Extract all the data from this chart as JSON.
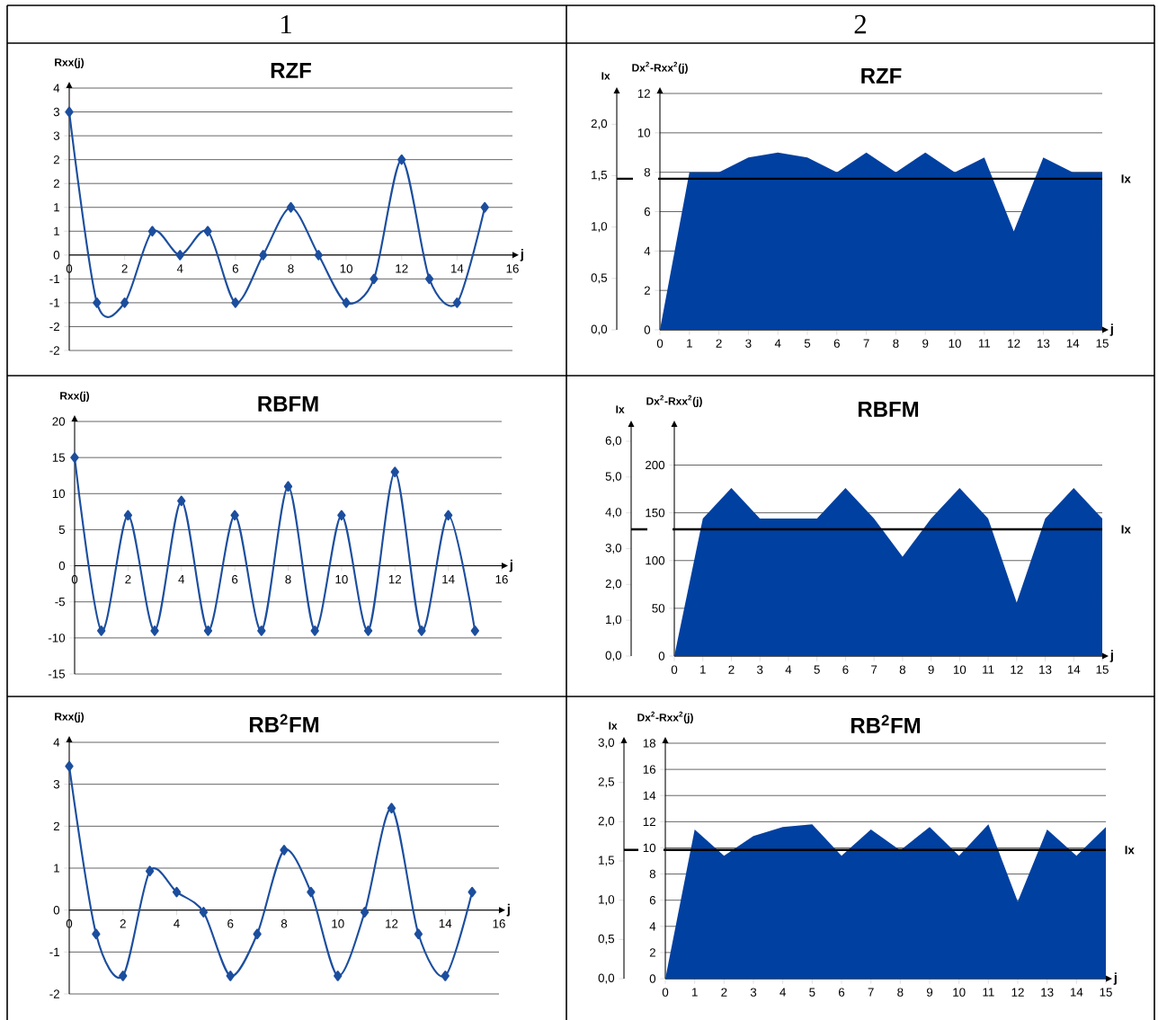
{
  "chart_data": [
    {
      "type": "line",
      "title": "RZF",
      "xlabel": "j",
      "ylabel": "Rxx(j)",
      "annotations": [
        "1"
      ],
      "color": "#1C4E9E",
      "marker": "diamond",
      "grid": "y",
      "x": [
        0,
        1,
        2,
        3,
        4,
        5,
        6,
        7,
        8,
        9,
        10,
        11,
        12,
        13,
        14,
        15
      ],
      "values": [
        3,
        -1,
        -1,
        0.5,
        0,
        0.5,
        -1,
        0,
        1,
        0,
        -1,
        -0.5,
        2,
        -0.5,
        -1,
        1
      ],
      "xlim": [
        0,
        16
      ],
      "xticks": [
        0,
        2,
        4,
        6,
        8,
        10,
        12,
        14,
        16
      ],
      "ylim": [
        -2,
        3.5
      ],
      "yticks": [
        {
          "value": 3.5,
          "label": "4"
        },
        3,
        {
          "value": 2.5,
          "label": "3"
        },
        2,
        {
          "value": 1.5,
          "label": "2"
        },
        1,
        {
          "value": 0.5,
          "label": "1"
        },
        0,
        {
          "value": -0.5,
          "label": "-1"
        },
        -1,
        {
          "value": -1.5,
          "label": "-2"
        },
        -2
      ]
    },
    {
      "type": "area",
      "title": "RZF",
      "xlabel": "j",
      "ylabel": "Dx$^{2}$-Rxx$^{2}$(j)",
      "y2label": "Ix",
      "annotations": [
        "2"
      ],
      "color": "#0040A0",
      "grid": "y",
      "x": [
        0,
        1,
        2,
        3,
        4,
        5,
        6,
        7,
        8,
        9,
        10,
        11,
        12,
        13,
        14,
        15
      ],
      "values": [
        0,
        8,
        8,
        8.75,
        9,
        8.75,
        8,
        9,
        8,
        9,
        8,
        8.75,
        5,
        8.75,
        8,
        8
      ],
      "xlim": [
        0,
        15
      ],
      "xticks": [
        0,
        1,
        2,
        3,
        4,
        5,
        6,
        7,
        8,
        9,
        10,
        11,
        12,
        13,
        14,
        15
      ],
      "ylim": [
        0,
        12
      ],
      "yticks": [
        0,
        2,
        4,
        6,
        8,
        10,
        12
      ],
      "y2lim": [
        0,
        2.3
      ],
      "y2ticks": [
        {
          "value": 0,
          "label": "0,0"
        },
        {
          "value": 0.5,
          "label": "0,5"
        },
        {
          "value": 1,
          "label": "1,0"
        },
        {
          "value": 1.5,
          "label": "1,5"
        },
        {
          "value": 2,
          "label": "2,0"
        }
      ],
      "ref_lines": [
        {
          "axis": "y2",
          "value": 1.47,
          "label": "Ix",
          "color": "#000000"
        }
      ]
    },
    {
      "type": "line",
      "title": "RBFM",
      "xlabel": "j",
      "ylabel": "Rxx(j)",
      "color": "#1C4E9E",
      "marker": "diamond",
      "grid": "y",
      "x": [
        0,
        1,
        2,
        3,
        4,
        5,
        6,
        7,
        8,
        9,
        10,
        11,
        12,
        13,
        14,
        15
      ],
      "values": [
        15,
        -9,
        7,
        -9,
        9,
        -9,
        7,
        -9,
        11,
        -9,
        7,
        -9,
        13,
        -9,
        7,
        -9
      ],
      "xlim": [
        0,
        16
      ],
      "xticks": [
        0,
        2,
        4,
        6,
        8,
        10,
        12,
        14,
        16
      ],
      "ylim": [
        -15,
        20
      ],
      "yticks": [
        -15,
        -10,
        -5,
        0,
        5,
        10,
        15,
        20
      ]
    },
    {
      "type": "area",
      "title": "RBFM",
      "xlabel": "j",
      "ylabel": "Dx$^{2}$-Rxx$^{2}$(j)",
      "y2label": "Ix",
      "color": "#0040A0",
      "grid": "y",
      "x": [
        0,
        1,
        2,
        3,
        4,
        5,
        6,
        7,
        8,
        9,
        10,
        11,
        12,
        13,
        14,
        15
      ],
      "values": [
        0,
        144,
        176,
        144,
        144,
        144,
        176,
        144,
        104,
        144,
        176,
        144,
        56,
        144,
        176,
        144
      ],
      "xlim": [
        0,
        15
      ],
      "xticks": [
        0,
        1,
        2,
        3,
        4,
        5,
        6,
        7,
        8,
        9,
        10,
        11,
        12,
        13,
        14,
        15
      ],
      "ylim": [
        0,
        240
      ],
      "yticks": [
        0,
        50,
        100,
        150,
        200
      ],
      "y2lim": [
        0,
        6.4
      ],
      "y2ticks": [
        {
          "value": 0,
          "label": "0,0"
        },
        {
          "value": 1,
          "label": "1,0"
        },
        {
          "value": 2,
          "label": "2,0"
        },
        {
          "value": 3,
          "label": "3,0"
        },
        {
          "value": 4,
          "label": "4,0"
        },
        {
          "value": 5,
          "label": "5,0"
        },
        {
          "value": 6,
          "label": "6,0"
        }
      ],
      "ref_lines": [
        {
          "axis": "y2",
          "value": 3.54,
          "label": "Ix",
          "color": "#000000"
        }
      ]
    },
    {
      "type": "line",
      "title": "RB$^{2}$FM",
      "xlabel": "j",
      "ylabel": "Rxx(j)",
      "color": "#1C4E9E",
      "marker": "diamond",
      "grid": "y",
      "x": [
        0,
        1,
        2,
        3,
        4,
        5,
        6,
        7,
        8,
        9,
        10,
        11,
        12,
        13,
        14,
        15
      ],
      "values": [
        3.43,
        -0.57,
        -1.57,
        0.93,
        0.43,
        -0.05,
        -1.57,
        -0.57,
        1.43,
        0.43,
        -1.57,
        -0.05,
        2.43,
        -0.57,
        -1.57,
        0.43
      ],
      "xlim": [
        0,
        16
      ],
      "xticks": [
        0,
        2,
        4,
        6,
        8,
        10,
        12,
        14,
        16
      ],
      "ylim": [
        -2,
        4
      ],
      "yticks": [
        -2,
        -1,
        0,
        1,
        2,
        3,
        4
      ]
    },
    {
      "type": "area",
      "title": "RB$^{2}$FM",
      "xlabel": "j",
      "ylabel": "Dx$^{2}$-Rxx$^{2}$(j)",
      "y2label": "Ix",
      "color": "#0040A0",
      "grid": "y",
      "x": [
        0,
        1,
        2,
        3,
        4,
        5,
        6,
        7,
        8,
        9,
        10,
        11,
        12,
        13,
        14,
        15
      ],
      "values": [
        0,
        11.4,
        9.4,
        10.9,
        11.6,
        11.8,
        9.4,
        11.4,
        9.8,
        11.6,
        9.4,
        11.8,
        5.9,
        11.4,
        9.4,
        11.6
      ],
      "xlim": [
        0,
        15
      ],
      "xticks": [
        0,
        1,
        2,
        3,
        4,
        5,
        6,
        7,
        8,
        9,
        10,
        11,
        12,
        13,
        14,
        15
      ],
      "ylim": [
        0,
        18
      ],
      "yticks": [
        0,
        2,
        4,
        6,
        8,
        10,
        12,
        14,
        16,
        18
      ],
      "y2lim": [
        0,
        3.0
      ],
      "y2ticks": [
        {
          "value": 0,
          "label": "0,0"
        },
        {
          "value": 0.5,
          "label": "0,5"
        },
        {
          "value": 1,
          "label": "1,0"
        },
        {
          "value": 1.5,
          "label": "1,5"
        },
        {
          "value": 2,
          "label": "2,0"
        },
        {
          "value": 2.5,
          "label": "2,5"
        },
        {
          "value": 3,
          "label": "3,0"
        }
      ],
      "ref_lines": [
        {
          "axis": "y2",
          "value": 1.64,
          "label": "Ix",
          "color": "#000000"
        }
      ]
    }
  ]
}
